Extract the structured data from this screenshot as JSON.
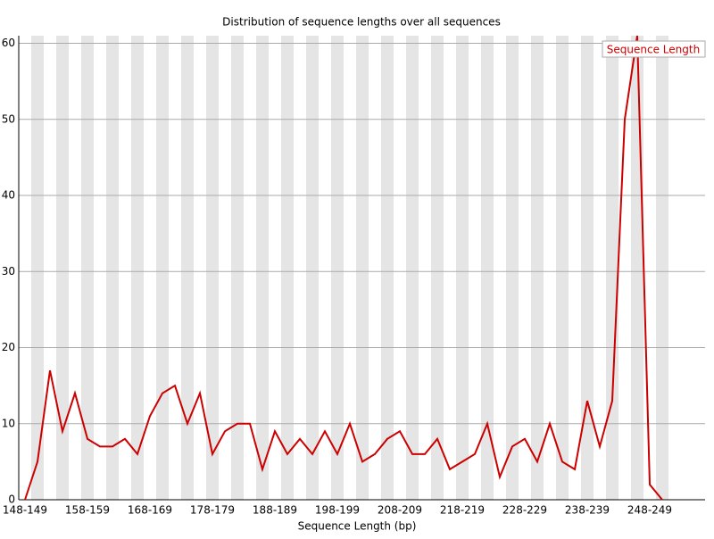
{
  "chart_data": {
    "type": "line",
    "title": "Distribution of sequence lengths over all sequences",
    "x_label": "Sequence Length (bp)",
    "categories": [
      "148-149",
      null,
      null,
      null,
      null,
      "158-159",
      null,
      null,
      null,
      null,
      "168-169",
      null,
      null,
      null,
      null,
      "178-179",
      null,
      null,
      null,
      null,
      "188-189",
      null,
      null,
      null,
      null,
      "198-199",
      null,
      null,
      null,
      null,
      "208-209",
      null,
      null,
      null,
      null,
      "218-219",
      null,
      null,
      null,
      null,
      "228-229",
      null,
      null,
      null,
      null,
      "238-239",
      null,
      null,
      null,
      null,
      "248-249",
      null
    ],
    "series": [
      {
        "name": "Sequence Length",
        "color": "#cc0000",
        "values": [
          0,
          5,
          17,
          9,
          14,
          8,
          7,
          7,
          8,
          6,
          11,
          14,
          15,
          10,
          14,
          6,
          9,
          10,
          10,
          4,
          9,
          6,
          8,
          6,
          9,
          6,
          10,
          5,
          6,
          8,
          9,
          6,
          6,
          8,
          4,
          5,
          6,
          10,
          3,
          7,
          8,
          5,
          10,
          5,
          4,
          13,
          7,
          13,
          50,
          61,
          2,
          0
        ]
      }
    ],
    "ylim": [
      0,
      61
    ],
    "yticks": [
      0,
      10,
      20,
      30,
      40,
      50,
      60
    ],
    "grid": true,
    "legend": "top-right"
  }
}
